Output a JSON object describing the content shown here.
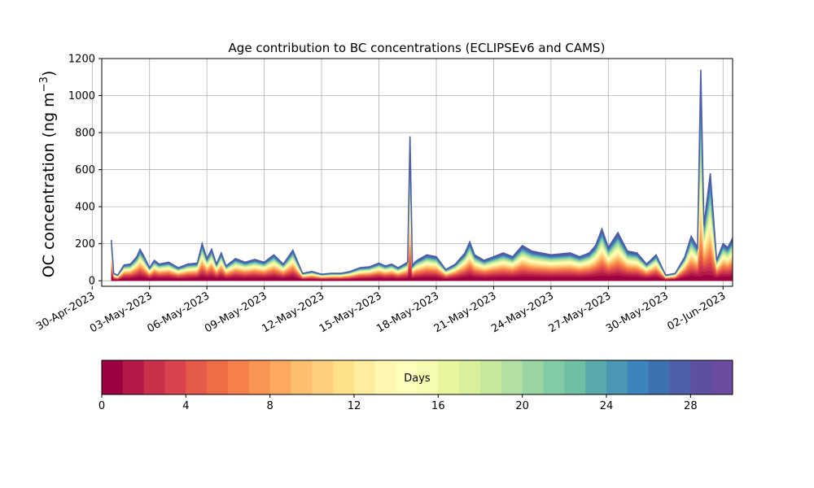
{
  "chart_data": {
    "type": "area",
    "title": "Age contribution to BC concentrations (ECLIPSEv6 and CAMS)",
    "ylabel": "OC concentration (ng m⁻³)",
    "ylabel_base": "OC concentration (ng m",
    "ylabel_sup": "−3",
    "ylabel_tail": ")",
    "xlabel": "",
    "ylim": [
      -30,
      1200
    ],
    "yticks": [
      0,
      200,
      400,
      600,
      800,
      1000,
      1200
    ],
    "grid": true,
    "x_range": [
      "2023-04-30T12:00",
      "2023-06-02T12:00"
    ],
    "xtick_dates": [
      "2023-04-30",
      "2023-05-03",
      "2023-05-06",
      "2023-05-09",
      "2023-05-12",
      "2023-05-15",
      "2023-05-18",
      "2023-05-21",
      "2023-05-24",
      "2023-05-27",
      "2023-05-30",
      "2023-06-02"
    ],
    "xtick_labels": [
      "30-Apr-2023",
      "03-May-2023",
      "06-May-2023",
      "09-May-2023",
      "12-May-2023",
      "15-May-2023",
      "18-May-2023",
      "21-May-2023",
      "24-May-2023",
      "27-May-2023",
      "30-May-2023",
      "02-Jun-2023"
    ],
    "total": {
      "dates": [
        "2023-05-01T00:00",
        "2023-05-01T03:00",
        "2023-05-01T08:00",
        "2023-05-01T16:00",
        "2023-05-02T00:00",
        "2023-05-02T08:00",
        "2023-05-02T12:00",
        "2023-05-02T16:00",
        "2023-05-03T00:00",
        "2023-05-03T06:00",
        "2023-05-03T12:00",
        "2023-05-04T00:00",
        "2023-05-04T12:00",
        "2023-05-05T00:00",
        "2023-05-05T12:00",
        "2023-05-05T18:00",
        "2023-05-06T00:00",
        "2023-05-06T06:00",
        "2023-05-06T12:00",
        "2023-05-06T18:00",
        "2023-05-07T00:00",
        "2023-05-07T12:00",
        "2023-05-08T00:00",
        "2023-05-08T12:00",
        "2023-05-09T00:00",
        "2023-05-09T12:00",
        "2023-05-10T00:00",
        "2023-05-10T12:00",
        "2023-05-11T00:00",
        "2023-05-11T12:00",
        "2023-05-12T00:00",
        "2023-05-12T12:00",
        "2023-05-13T00:00",
        "2023-05-13T12:00",
        "2023-05-14T00:00",
        "2023-05-14T12:00",
        "2023-05-15T00:00",
        "2023-05-15T08:00",
        "2023-05-15T16:00",
        "2023-05-16T00:00",
        "2023-05-16T12:00",
        "2023-05-16T15:00",
        "2023-05-16T18:00",
        "2023-05-16T21:00",
        "2023-05-17T00:00",
        "2023-05-17T12:00",
        "2023-05-18T00:00",
        "2023-05-18T12:00",
        "2023-05-19T00:00",
        "2023-05-19T12:00",
        "2023-05-19T18:00",
        "2023-05-20T00:00",
        "2023-05-20T12:00",
        "2023-05-21T00:00",
        "2023-05-21T12:00",
        "2023-05-22T00:00",
        "2023-05-22T12:00",
        "2023-05-23T00:00",
        "2023-05-23T12:00",
        "2023-05-24T00:00",
        "2023-05-24T12:00",
        "2023-05-25T00:00",
        "2023-05-25T12:00",
        "2023-05-26T00:00",
        "2023-05-26T08:00",
        "2023-05-26T16:00",
        "2023-05-27T00:00",
        "2023-05-27T12:00",
        "2023-05-28T00:00",
        "2023-05-28T12:00",
        "2023-05-29T00:00",
        "2023-05-29T12:00",
        "2023-05-30T00:00",
        "2023-05-30T12:00",
        "2023-05-31T00:00",
        "2023-05-31T08:00",
        "2023-05-31T16:00",
        "2023-05-31T20:00",
        "2023-06-01T00:00",
        "2023-06-01T08:00",
        "2023-06-01T16:00",
        "2023-06-02T00:00",
        "2023-06-02T06:00",
        "2023-06-02T12:00"
      ],
      "values": [
        220,
        40,
        30,
        85,
        90,
        130,
        170,
        140,
        70,
        110,
        90,
        100,
        70,
        90,
        95,
        200,
        120,
        170,
        90,
        150,
        80,
        120,
        100,
        115,
        100,
        140,
        90,
        165,
        40,
        50,
        35,
        40,
        40,
        50,
        70,
        75,
        95,
        80,
        90,
        70,
        100,
        780,
        80,
        100,
        110,
        140,
        130,
        60,
        90,
        150,
        210,
        140,
        110,
        130,
        150,
        130,
        190,
        160,
        150,
        140,
        145,
        150,
        130,
        150,
        190,
        280,
        180,
        260,
        160,
        150,
        90,
        140,
        30,
        40,
        130,
        240,
        180,
        1140,
        300,
        580,
        110,
        200,
        180,
        230
      ]
    },
    "colorbar": {
      "label": "Days",
      "range": [
        0,
        30
      ],
      "ticks": [
        0,
        4,
        8,
        12,
        16,
        20,
        24,
        28
      ],
      "tick_labels": [
        "0",
        "4",
        "8",
        "12",
        "16",
        "20",
        "24",
        "28"
      ],
      "colors": [
        "#9e0142",
        "#b41947",
        "#c9314b",
        "#d8434e",
        "#e55a49",
        "#ef6d45",
        "#f67f4b",
        "#f99555",
        "#fdaa60",
        "#fdbf6f",
        "#fecf7f",
        "#fee08b",
        "#feec9f",
        "#fff7b2",
        "#fefebd",
        "#f5fbb0",
        "#e9f69e",
        "#d9ef9b",
        "#c7e89f",
        "#b2e0a2",
        "#9bd5a4",
        "#83cba5",
        "#6fbfa4",
        "#5aa9ac",
        "#4a96b5",
        "#3c84bc",
        "#3d71b2",
        "#4f5ea8",
        "#5e4fa2",
        "#6b4ca0"
      ]
    },
    "series_note": ""
  }
}
